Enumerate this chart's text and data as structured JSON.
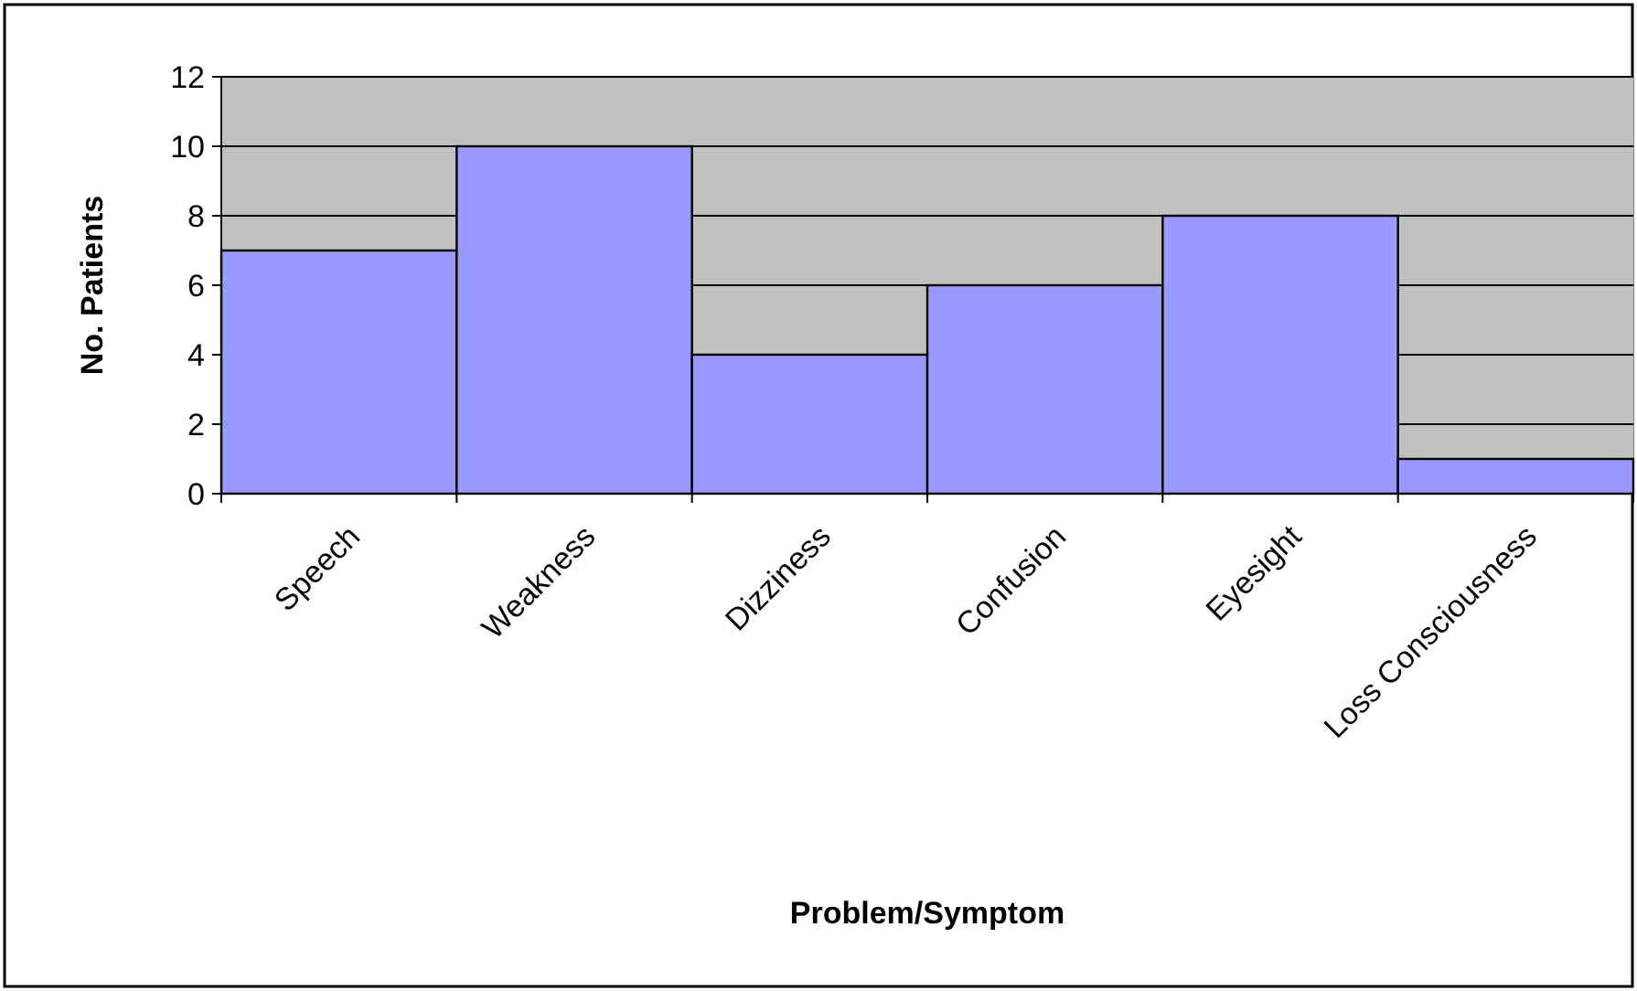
{
  "chart_data": {
    "type": "bar",
    "xlabel": "Problem/Symptom",
    "ylabel": "No. Patients",
    "categories": [
      "Speech",
      "Weakness",
      "Dizziness",
      "Confusion",
      "Eyesight",
      "Loss Consciousness"
    ],
    "values": [
      7,
      10,
      4,
      6,
      8,
      1
    ],
    "color": "#9999ff",
    "ylim": [
      0,
      12
    ],
    "yticks": [
      0,
      2,
      4,
      6,
      8,
      10,
      12
    ],
    "grid": "y"
  }
}
